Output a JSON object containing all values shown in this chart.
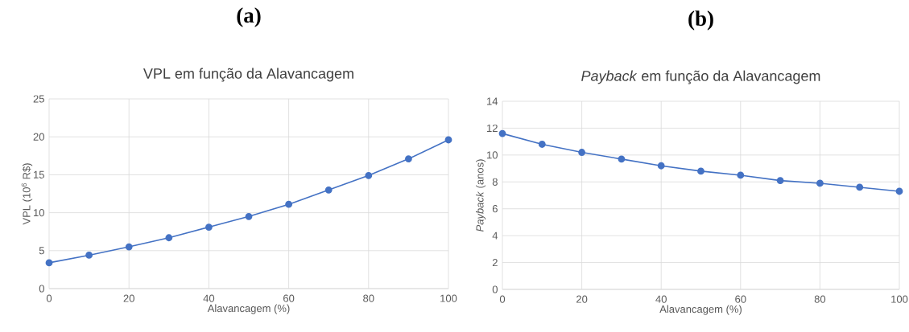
{
  "chart_data": [
    {
      "type": "line",
      "title": "VPL em função da Alavancagem",
      "annotations": [
        "(a)"
      ],
      "xlabel": "Alavancagem (%)",
      "ylabel": "VPL (10$^{6}$ R$)",
      "x": [
        0,
        10,
        20,
        30,
        40,
        50,
        60,
        70,
        80,
        90,
        100
      ],
      "values": [
        3.4,
        4.4,
        5.5,
        6.7,
        8.1,
        9.5,
        11.1,
        13.0,
        14.9,
        17.1,
        19.6
      ],
      "color": "#4472c4",
      "marker": "circle",
      "grid": true,
      "xlim": [
        0,
        100
      ],
      "ylim": [
        0,
        25
      ],
      "xticks": [
        0,
        20,
        40,
        60,
        80,
        100
      ],
      "yticks": [
        0,
        5,
        10,
        15,
        20,
        25
      ]
    },
    {
      "type": "line",
      "title": "*Payback* em função da Alavancagem",
      "annotations": [
        "(b)"
      ],
      "xlabel": "Alavancagem (%)",
      "ylabel": "*Payback* (anos)",
      "x": [
        0,
        10,
        20,
        30,
        40,
        50,
        60,
        70,
        80,
        90,
        100
      ],
      "values": [
        11.6,
        10.8,
        10.2,
        9.7,
        9.2,
        8.8,
        8.5,
        8.1,
        7.9,
        7.6,
        7.3
      ],
      "color": "#4472c4",
      "marker": "circle",
      "grid": true,
      "xlim": [
        0,
        100
      ],
      "ylim": [
        0,
        14
      ],
      "xticks": [
        0,
        20,
        40,
        60,
        80,
        100
      ],
      "yticks": [
        0,
        2,
        4,
        6,
        8,
        10,
        12,
        14
      ]
    }
  ]
}
